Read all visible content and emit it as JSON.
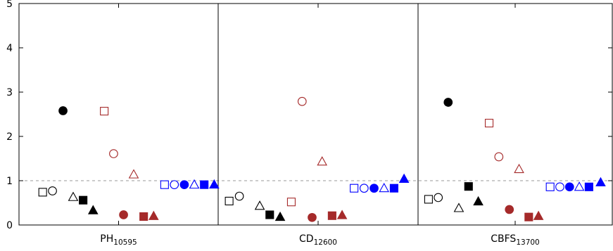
{
  "chart_data": {
    "type": "scatter",
    "title": "",
    "xlabel": "",
    "ylabel": "",
    "ylim": [
      0,
      5
    ],
    "yticks": [
      0,
      1,
      2,
      3,
      4,
      5
    ],
    "reference_line": 1,
    "grid": false,
    "legend": "none",
    "categories": [
      {
        "main": "PH",
        "sub": "10595"
      },
      {
        "main": "CD",
        "sub": "12600"
      },
      {
        "main": "CBFS",
        "sub": "13700"
      }
    ],
    "colors": {
      "black": "#000000",
      "red": "#a52a2a",
      "blue": "#0000ff",
      "refline": "#999999"
    },
    "markers_order": [
      {
        "shape": "square",
        "fill": false,
        "color": "black"
      },
      {
        "shape": "circle",
        "fill": false,
        "color": "black"
      },
      {
        "shape": "circle",
        "fill": true,
        "color": "black"
      },
      {
        "shape": "triangle",
        "fill": false,
        "color": "black"
      },
      {
        "shape": "square",
        "fill": true,
        "color": "black"
      },
      {
        "shape": "triangle",
        "fill": true,
        "color": "black"
      },
      {
        "shape": "square",
        "fill": false,
        "color": "red"
      },
      {
        "shape": "circle",
        "fill": false,
        "color": "red"
      },
      {
        "shape": "circle",
        "fill": true,
        "color": "red"
      },
      {
        "shape": "triangle",
        "fill": false,
        "color": "red"
      },
      {
        "shape": "square",
        "fill": true,
        "color": "red"
      },
      {
        "shape": "triangle",
        "fill": true,
        "color": "red"
      },
      {
        "shape": "square",
        "fill": false,
        "color": "blue"
      },
      {
        "shape": "circle",
        "fill": false,
        "color": "blue"
      },
      {
        "shape": "circle",
        "fill": true,
        "color": "blue"
      },
      {
        "shape": "triangle",
        "fill": false,
        "color": "blue"
      },
      {
        "shape": "square",
        "fill": true,
        "color": "blue"
      },
      {
        "shape": "triangle",
        "fill": true,
        "color": "blue"
      }
    ],
    "panels": [
      {
        "category": "PH10595",
        "points": [
          {
            "shape": "square",
            "fill": false,
            "color": "black",
            "x": 0.119,
            "y": 0.74
          },
          {
            "shape": "circle",
            "fill": false,
            "color": "black",
            "x": 0.168,
            "y": 0.77
          },
          {
            "shape": "circle",
            "fill": true,
            "color": "black",
            "x": 0.221,
            "y": 2.58
          },
          {
            "shape": "triangle",
            "fill": false,
            "color": "black",
            "x": 0.272,
            "y": 0.63
          },
          {
            "shape": "square",
            "fill": true,
            "color": "black",
            "x": 0.322,
            "y": 0.56
          },
          {
            "shape": "triangle",
            "fill": true,
            "color": "black",
            "x": 0.372,
            "y": 0.33
          },
          {
            "shape": "square",
            "fill": false,
            "color": "red",
            "x": 0.428,
            "y": 2.57
          },
          {
            "shape": "circle",
            "fill": false,
            "color": "red",
            "x": 0.475,
            "y": 1.61
          },
          {
            "shape": "circle",
            "fill": true,
            "color": "red",
            "x": 0.525,
            "y": 0.23
          },
          {
            "shape": "triangle",
            "fill": false,
            "color": "red",
            "x": 0.576,
            "y": 1.14
          },
          {
            "shape": "square",
            "fill": true,
            "color": "red",
            "x": 0.626,
            "y": 0.19
          },
          {
            "shape": "triangle",
            "fill": true,
            "color": "red",
            "x": 0.676,
            "y": 0.2
          },
          {
            "shape": "square",
            "fill": false,
            "color": "blue",
            "x": 0.731,
            "y": 0.91
          },
          {
            "shape": "circle",
            "fill": false,
            "color": "blue",
            "x": 0.78,
            "y": 0.91
          },
          {
            "shape": "circle",
            "fill": true,
            "color": "blue",
            "x": 0.83,
            "y": 0.91
          },
          {
            "shape": "triangle",
            "fill": false,
            "color": "blue",
            "x": 0.88,
            "y": 0.91
          },
          {
            "shape": "square",
            "fill": true,
            "color": "blue",
            "x": 0.93,
            "y": 0.91
          },
          {
            "shape": "triangle",
            "fill": true,
            "color": "blue",
            "x": 0.98,
            "y": 0.91
          }
        ]
      },
      {
        "category": "CD12600",
        "points": [
          {
            "shape": "square",
            "fill": false,
            "color": "black",
            "x": 0.055,
            "y": 0.54
          },
          {
            "shape": "circle",
            "fill": false,
            "color": "black",
            "x": 0.106,
            "y": 0.65
          },
          {
            "shape": "triangle",
            "fill": false,
            "color": "black",
            "x": 0.208,
            "y": 0.43
          },
          {
            "shape": "square",
            "fill": true,
            "color": "black",
            "x": 0.258,
            "y": 0.23
          },
          {
            "shape": "triangle",
            "fill": true,
            "color": "black",
            "x": 0.31,
            "y": 0.18
          },
          {
            "shape": "square",
            "fill": false,
            "color": "red",
            "x": 0.366,
            "y": 0.52
          },
          {
            "shape": "circle",
            "fill": false,
            "color": "red",
            "x": 0.42,
            "y": 2.79
          },
          {
            "shape": "circle",
            "fill": true,
            "color": "red",
            "x": 0.47,
            "y": 0.17
          },
          {
            "shape": "triangle",
            "fill": false,
            "color": "red",
            "x": 0.52,
            "y": 1.43
          },
          {
            "shape": "square",
            "fill": true,
            "color": "red",
            "x": 0.57,
            "y": 0.21
          },
          {
            "shape": "triangle",
            "fill": true,
            "color": "red",
            "x": 0.62,
            "y": 0.22
          },
          {
            "shape": "square",
            "fill": false,
            "color": "blue",
            "x": 0.68,
            "y": 0.83
          },
          {
            "shape": "circle",
            "fill": false,
            "color": "blue",
            "x": 0.73,
            "y": 0.83
          },
          {
            "shape": "circle",
            "fill": true,
            "color": "blue",
            "x": 0.78,
            "y": 0.83
          },
          {
            "shape": "triangle",
            "fill": false,
            "color": "blue",
            "x": 0.83,
            "y": 0.83
          },
          {
            "shape": "square",
            "fill": true,
            "color": "blue",
            "x": 0.88,
            "y": 0.83
          },
          {
            "shape": "triangle",
            "fill": true,
            "color": "blue",
            "x": 0.93,
            "y": 1.04
          }
        ]
      },
      {
        "category": "CBFS13700",
        "points": [
          {
            "shape": "square",
            "fill": false,
            "color": "black",
            "x": 0.054,
            "y": 0.58
          },
          {
            "shape": "circle",
            "fill": false,
            "color": "black",
            "x": 0.104,
            "y": 0.62
          },
          {
            "shape": "circle",
            "fill": true,
            "color": "black",
            "x": 0.155,
            "y": 2.77
          },
          {
            "shape": "triangle",
            "fill": false,
            "color": "black",
            "x": 0.21,
            "y": 0.38
          },
          {
            "shape": "square",
            "fill": true,
            "color": "black",
            "x": 0.26,
            "y": 0.87
          },
          {
            "shape": "triangle",
            "fill": true,
            "color": "black",
            "x": 0.31,
            "y": 0.53
          },
          {
            "shape": "square",
            "fill": false,
            "color": "red",
            "x": 0.366,
            "y": 2.3
          },
          {
            "shape": "circle",
            "fill": false,
            "color": "red",
            "x": 0.416,
            "y": 1.54
          },
          {
            "shape": "circle",
            "fill": true,
            "color": "red",
            "x": 0.47,
            "y": 0.35
          },
          {
            "shape": "triangle",
            "fill": false,
            "color": "red",
            "x": 0.52,
            "y": 1.26
          },
          {
            "shape": "square",
            "fill": true,
            "color": "red",
            "x": 0.57,
            "y": 0.18
          },
          {
            "shape": "triangle",
            "fill": true,
            "color": "red",
            "x": 0.62,
            "y": 0.2
          },
          {
            "shape": "square",
            "fill": false,
            "color": "blue",
            "x": 0.68,
            "y": 0.86
          },
          {
            "shape": "circle",
            "fill": false,
            "color": "blue",
            "x": 0.73,
            "y": 0.86
          },
          {
            "shape": "circle",
            "fill": true,
            "color": "blue",
            "x": 0.78,
            "y": 0.86
          },
          {
            "shape": "triangle",
            "fill": false,
            "color": "blue",
            "x": 0.83,
            "y": 0.86
          },
          {
            "shape": "square",
            "fill": true,
            "color": "blue",
            "x": 0.88,
            "y": 0.86
          },
          {
            "shape": "triangle",
            "fill": true,
            "color": "blue",
            "x": 0.94,
            "y": 0.96
          }
        ]
      }
    ]
  }
}
